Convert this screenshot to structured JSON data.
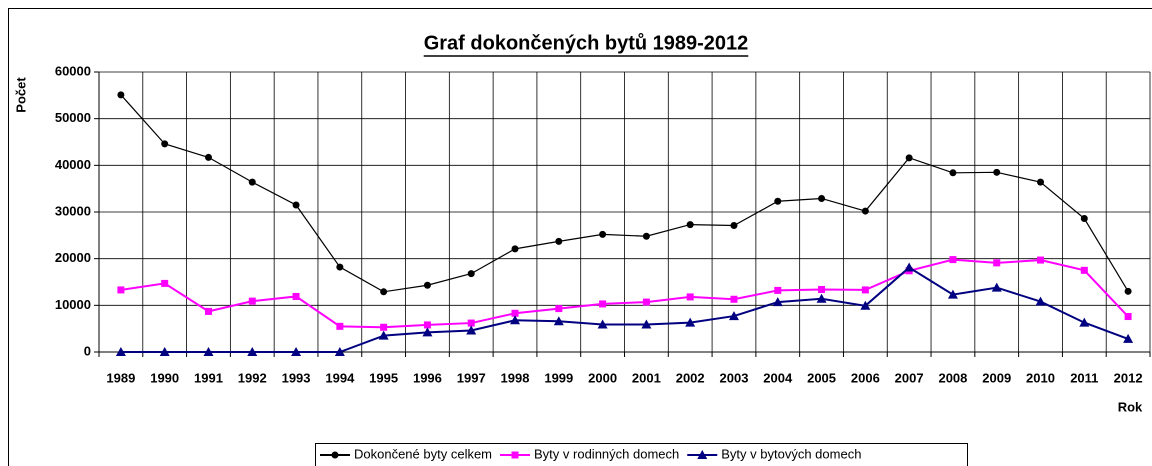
{
  "chart_data": {
    "type": "line",
    "title": "Graf dokončených bytů 1989-2012",
    "y_label": "Počet",
    "x_label": "Rok",
    "categories": [
      "1989",
      "1990",
      "1991",
      "1992",
      "1993",
      "1994",
      "1995",
      "1996",
      "1997",
      "1998",
      "1999",
      "2000",
      "2001",
      "2002",
      "2003",
      "2004",
      "2005",
      "2006",
      "2007",
      "2008",
      "2009",
      "2010",
      "2011",
      "2012"
    ],
    "series": [
      {
        "name": "Dokončené byty celkem",
        "color": "#000000",
        "marker": "circle",
        "values": [
          55100,
          44600,
          41700,
          36400,
          31500,
          18200,
          12900,
          14300,
          16800,
          22100,
          23700,
          25200,
          24800,
          27300,
          27100,
          32300,
          32900,
          30200,
          41600,
          38400,
          38500,
          36400,
          28600,
          13000
        ]
      },
      {
        "name": "Byty v rodinných domech",
        "color": "#ff00ff",
        "marker": "square",
        "values": [
          13300,
          14700,
          8700,
          10900,
          11900,
          5500,
          5300,
          5800,
          6200,
          8300,
          9300,
          10300,
          10700,
          11800,
          11300,
          13200,
          13400,
          13300,
          17400,
          19800,
          19100,
          19700,
          17500,
          7600
        ]
      },
      {
        "name": "Byty v bytových domech",
        "color": "#000080",
        "marker": "triangle",
        "values": [
          0,
          0,
          0,
          0,
          0,
          0,
          3500,
          4200,
          4600,
          6800,
          6600,
          5900,
          5900,
          6300,
          7700,
          10700,
          11400,
          9900,
          18100,
          12300,
          13800,
          10800,
          6300,
          2800
        ]
      }
    ],
    "ylim": [
      0,
      60000
    ],
    "yticks": [
      0,
      10000,
      20000,
      30000,
      40000,
      50000,
      60000
    ],
    "grid": true,
    "legend": "bottom"
  }
}
